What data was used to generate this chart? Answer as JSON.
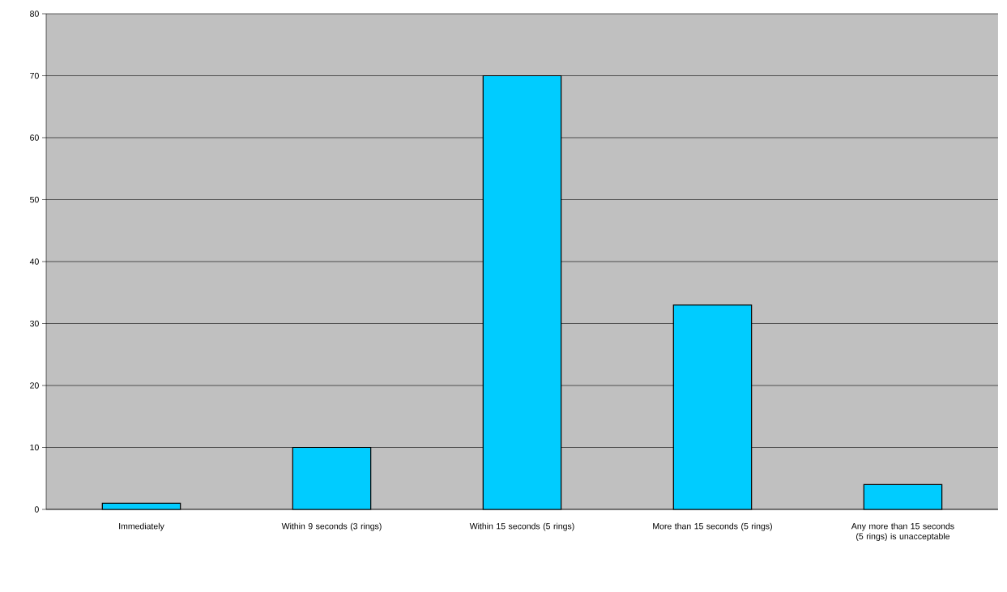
{
  "chart_data": {
    "type": "bar",
    "categories": [
      "Immediately",
      "Within 9 seconds (3 rings)",
      "Within 15 seconds (5 rings)",
      "More than 15 seconds (5 rings)",
      "Any more than 15 seconds (5 rings) is unacceptable"
    ],
    "values": [
      1,
      10,
      70,
      33,
      4
    ],
    "color": "#00ccff",
    "ylim": [
      0,
      80
    ],
    "yticks": [
      0,
      10,
      20,
      30,
      40,
      50,
      60,
      70,
      80
    ],
    "grid": "y"
  }
}
